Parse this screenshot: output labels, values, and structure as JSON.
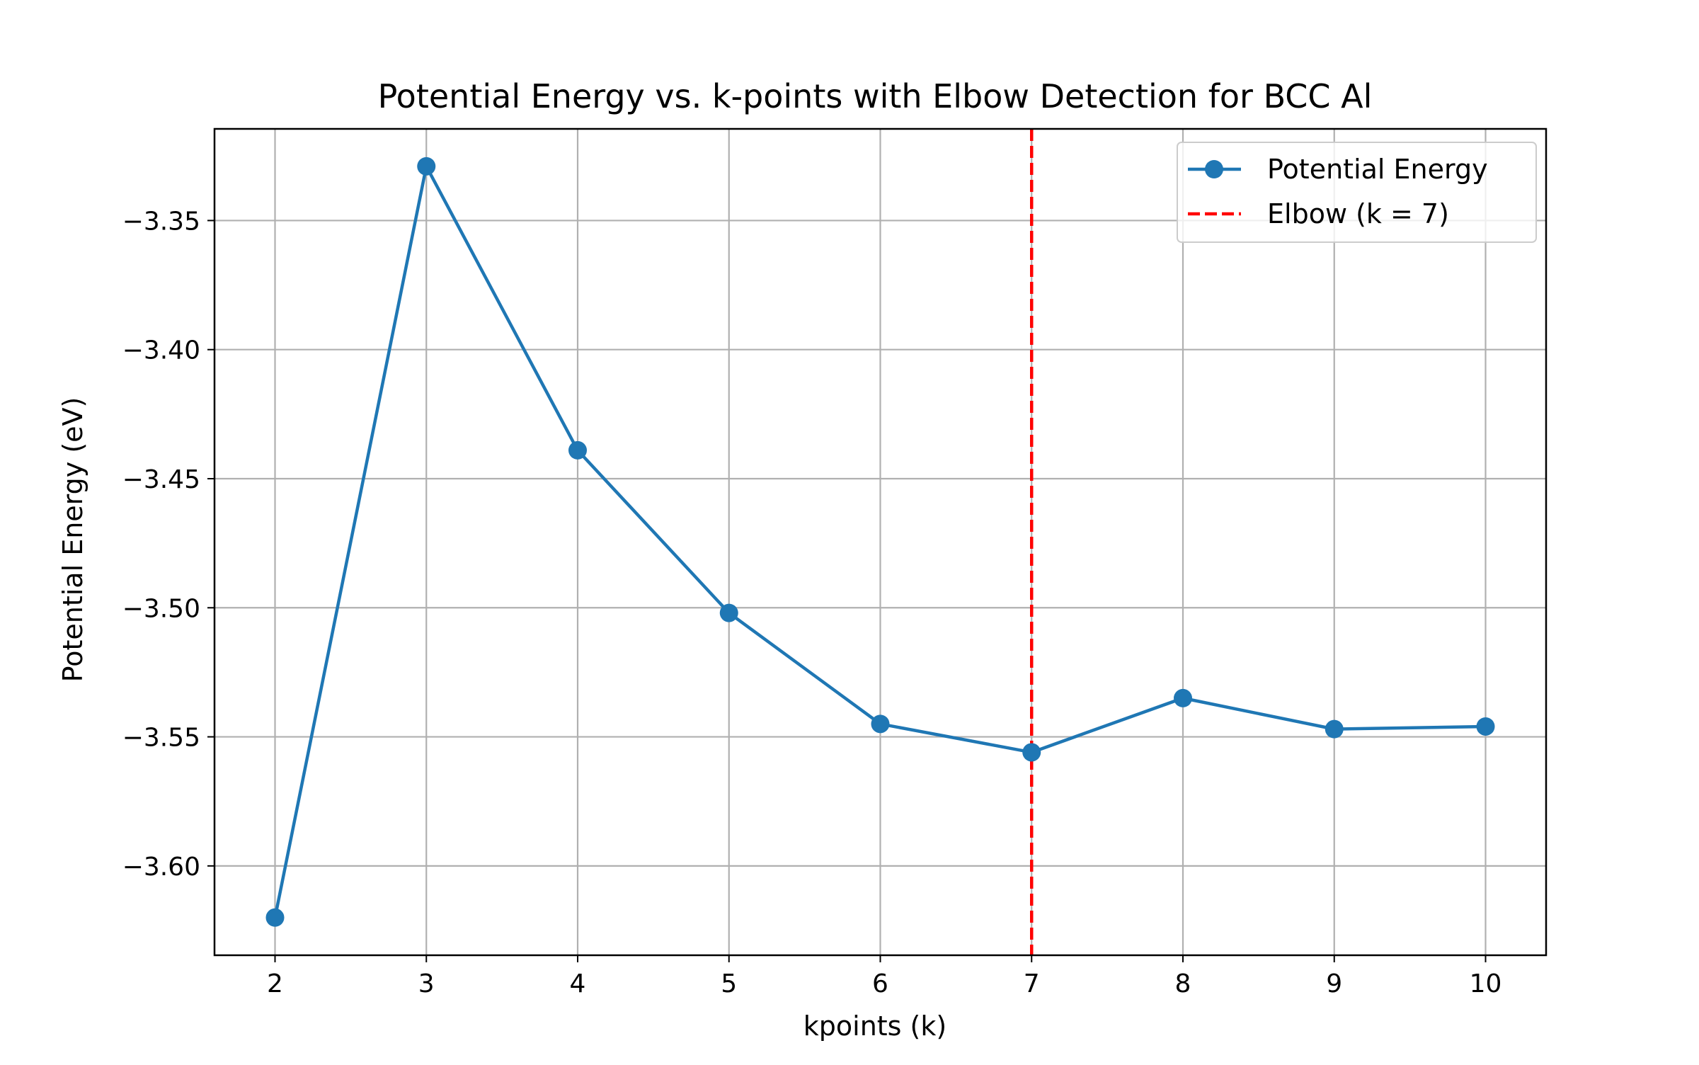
{
  "chart_data": {
    "type": "line",
    "title": "Potential Energy vs. k-points with Elbow Detection for BCC Al",
    "xlabel": "kpoints (k)",
    "ylabel": "Potential Energy (eV)",
    "x": [
      2,
      3,
      4,
      5,
      6,
      7,
      8,
      9,
      10
    ],
    "series": [
      {
        "name": "Potential Energy",
        "color": "#1f77b4",
        "marker": "circle",
        "values": [
          -3.62,
          -3.329,
          -3.439,
          -3.502,
          -3.545,
          -3.556,
          -3.535,
          -3.547,
          -3.546
        ]
      }
    ],
    "elbow": {
      "label": "Elbow (k = 7)",
      "x": 7,
      "color": "#ff0000",
      "style": "dashed"
    },
    "xlim": [
      1.6,
      10.4
    ],
    "ylim": [
      -3.6346,
      -3.3145
    ],
    "xticks": [
      2,
      3,
      4,
      5,
      6,
      7,
      8,
      9,
      10
    ],
    "xtick_labels": [
      "2",
      "3",
      "4",
      "5",
      "6",
      "7",
      "8",
      "9",
      "10"
    ],
    "yticks": [
      -3.6,
      -3.55,
      -3.5,
      -3.45,
      -3.4,
      -3.35
    ],
    "ytick_labels": [
      "−3.60",
      "−3.55",
      "−3.50",
      "−3.45",
      "−3.40",
      "−3.35"
    ],
    "grid": true,
    "legend_position": "top-right"
  }
}
